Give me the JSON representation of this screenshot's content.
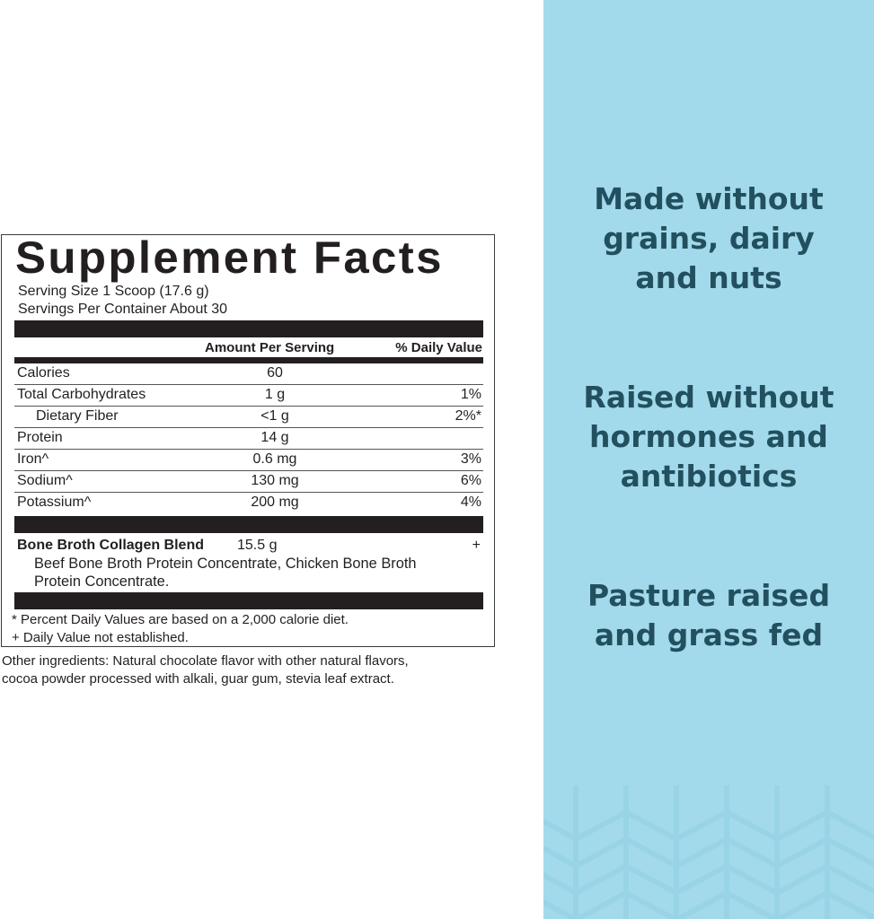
{
  "label": {
    "title": "Supplement Facts",
    "serving_size": "Serving Size 1 Scoop (17.6 g)",
    "servings_per_container": "Servings Per Container About 30",
    "header_amount": "Amount Per Serving",
    "header_dv": "% Daily Value",
    "rows": [
      {
        "name": "Calories",
        "amount": "60",
        "dv": ""
      },
      {
        "name": "Total Carbohydrates",
        "amount": "1 g",
        "dv": "1%"
      },
      {
        "name": "Dietary Fiber",
        "amount": "<1 g",
        "dv": "2%*"
      },
      {
        "name": "Protein",
        "amount": "14 g",
        "dv": ""
      },
      {
        "name": "Iron^",
        "amount": "0.6 mg",
        "dv": "3%"
      },
      {
        "name": "Sodium^",
        "amount": "130 mg",
        "dv": "6%"
      },
      {
        "name": "Potassium^",
        "amount": "200 mg",
        "dv": "4%"
      }
    ],
    "blend": {
      "name": "Bone Broth Collagen Blend",
      "amount": "15.5 g",
      "dv": "+",
      "ingredients_line1": "Beef Bone Broth Protein Concentrate, Chicken Bone Broth",
      "ingredients_line2": "Protein Concentrate."
    },
    "footnote1": "* Percent Daily Values are based on a 2,000 calorie diet.",
    "footnote2": "+ Daily Value not established."
  },
  "other_ingredients": {
    "line1": "Other ingredients: Natural chocolate flavor with other natural flavors,",
    "line2": "cocoa powder processed with alkali, guar gum, stevia leaf extract."
  },
  "panel": {
    "background_color": "#a2daec",
    "text_color": "#23505e",
    "claims": [
      {
        "line1": "Made without",
        "line2": "grains, dairy",
        "line3": "and nuts"
      },
      {
        "line1": "Raised without",
        "line2": "hormones and",
        "line3": "antibiotics"
      },
      {
        "line1": "Pasture raised",
        "line2": "and grass fed"
      }
    ]
  }
}
